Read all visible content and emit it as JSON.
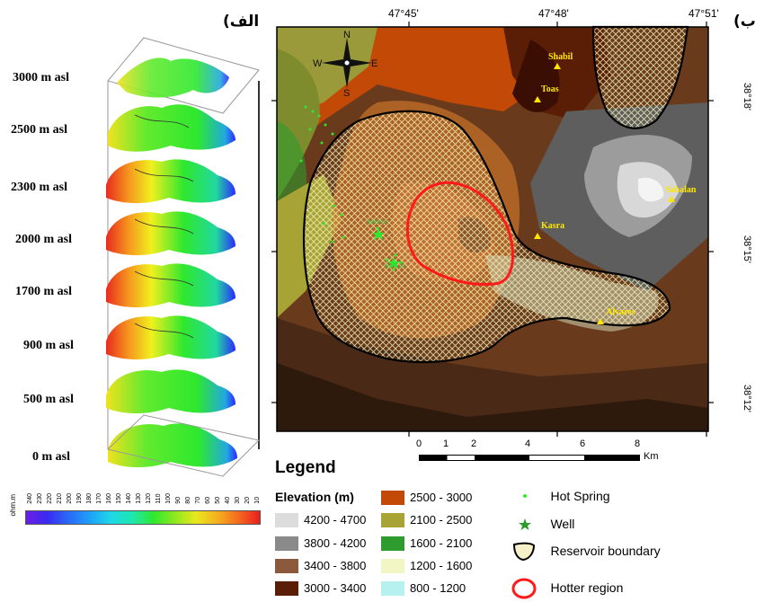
{
  "panels": {
    "left_label": "الف)",
    "right_label": "ب)"
  },
  "left_panel": {
    "slices": [
      {
        "label": "3000 m asl"
      },
      {
        "label": "2500 m asl"
      },
      {
        "label": "2300 m asl"
      },
      {
        "label": "2000 m asl"
      },
      {
        "label": "1700 m asl"
      },
      {
        "label": "900 m asl"
      },
      {
        "label": "500 m asl"
      },
      {
        "label": "0 m asl"
      }
    ],
    "colorbar": {
      "unit": "ohm.m",
      "ticks": [
        "240",
        "230",
        "220",
        "210",
        "200",
        "190",
        "180",
        "170",
        "160",
        "150",
        "140",
        "130",
        "120",
        "110",
        "100",
        "90",
        "80",
        "70",
        "60",
        "50",
        "40",
        "30",
        "20",
        "10"
      ]
    },
    "colors": {
      "low": "#e00000",
      "mid": "#f5f500",
      "green": "#2ee82e",
      "high": "#2a2aff"
    }
  },
  "map": {
    "lon_ticks": [
      "47°45'",
      "47°48'",
      "47°51'"
    ],
    "lat_ticks": [
      "38°18'",
      "38°15'",
      "38°12'"
    ],
    "compass": {
      "n": "N",
      "e": "E",
      "s": "S",
      "w": "W"
    },
    "places": [
      {
        "name": "Shabil"
      },
      {
        "name": "Toas"
      },
      {
        "name": "Sabalan"
      },
      {
        "name": "Kasra"
      },
      {
        "name": "Alvares"
      }
    ],
    "wells": [
      "NWS-10",
      "NWS-20"
    ],
    "scalebar": {
      "ticks": [
        "0",
        "1",
        "2",
        "4",
        "6",
        "8"
      ],
      "unit": "Km"
    }
  },
  "legend": {
    "title": "Legend",
    "elevation_title": "Elevation (m)",
    "elevation_classes": [
      {
        "label": "4200 - 4700",
        "color": "#dcdcdc"
      },
      {
        "label": "3800 - 4200",
        "color": "#8a8a8a"
      },
      {
        "label": "3400 - 3800",
        "color": "#8b5a3c"
      },
      {
        "label": "3000 - 3400",
        "color": "#5a1e06"
      },
      {
        "label": "2500 - 3000",
        "color": "#c24a06"
      },
      {
        "label": "2100 - 2500",
        "color": "#a8a335"
      },
      {
        "label": "1600 - 2100",
        "color": "#2e9b2e"
      },
      {
        "label": "1200 - 1600",
        "color": "#f2f6c4"
      },
      {
        "label": "800 - 1200",
        "color": "#b6f0ef"
      }
    ],
    "symbols": [
      {
        "label": "Hot Spring"
      },
      {
        "label": "Well"
      },
      {
        "label": "Reservoir boundary"
      },
      {
        "label": "Hotter region"
      }
    ]
  }
}
